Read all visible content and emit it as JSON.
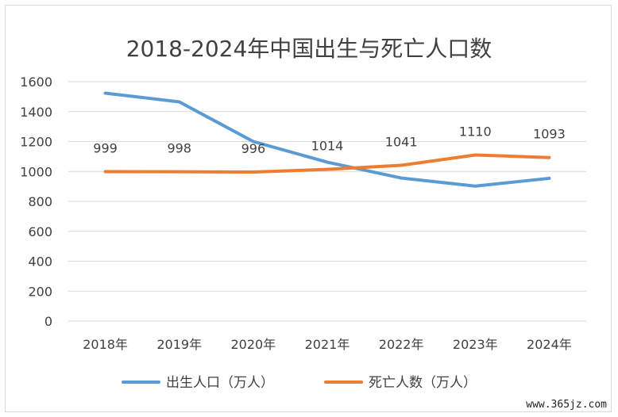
{
  "chart_data": {
    "type": "line",
    "title": "2018-2024年中国出生与死亡人口数",
    "categories": [
      "2018年",
      "2019年",
      "2020年",
      "2021年",
      "2022年",
      "2023年",
      "2024年"
    ],
    "ylim": [
      0,
      1600
    ],
    "yticks": [
      "0",
      "200",
      "400",
      "600",
      "800",
      "1000",
      "1200",
      "1400",
      "1600"
    ],
    "grid": true,
    "legend_position": "bottom",
    "series": [
      {
        "name": "出生人口（万人）",
        "color": "#5b9bd5",
        "values": [
          1523,
          1465,
          1200,
          1062,
          956,
          902,
          954
        ],
        "labels": []
      },
      {
        "name": "死亡人数（万人）",
        "color": "#ed7d31",
        "values": [
          999,
          998,
          996,
          1014,
          1041,
          1110,
          1093
        ],
        "labels": [
          "999",
          "998",
          "996",
          "1014",
          "1041",
          "1110",
          "1093"
        ]
      }
    ]
  },
  "watermark": "www.365jz.com"
}
